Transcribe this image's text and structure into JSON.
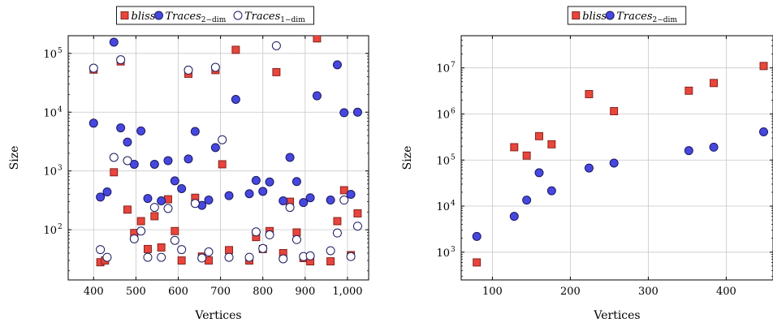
{
  "chart_data": [
    {
      "type": "scatter",
      "xlabel": "Vertices",
      "ylabel": "Size",
      "xlim": [
        340,
        1050
      ],
      "ylim": [
        14,
        200000
      ],
      "yscale": "log",
      "x_ticks": [
        400,
        500,
        600,
        700,
        800,
        900,
        1000
      ],
      "x_tick_labels": [
        "400",
        "500",
        "600",
        "700",
        "800",
        "900",
        "1,000"
      ],
      "y_ticks": [
        100,
        1000,
        10000,
        100000
      ],
      "y_tick_labels": [
        "10",
        "10",
        "10",
        "10"
      ],
      "y_tick_exponents": [
        "2",
        "3",
        "4",
        "5"
      ],
      "grid": true,
      "legend": {
        "placement": "top-center",
        "entries": [
          {
            "name": "bliss",
            "sub": "",
            "marker": "square"
          },
          {
            "name": "Traces",
            "sub": "2−dim",
            "marker": "filled-circle"
          },
          {
            "name": "Traces",
            "sub": "1−dim",
            "marker": "open-circle"
          }
        ]
      },
      "series": [
        {
          "name": "bliss",
          "marker": "square",
          "color": "#e8453c",
          "edge": "#7a1c16",
          "points": [
            [
              400,
              53000
            ],
            [
              416,
              28
            ],
            [
              427,
              30
            ],
            [
              448,
              950
            ],
            [
              464,
              73000
            ],
            [
              480,
              220
            ],
            [
              496,
              88
            ],
            [
              512,
              140
            ],
            [
              528,
              47
            ],
            [
              544,
              170
            ],
            [
              560,
              50
            ],
            [
              576,
              330
            ],
            [
              592,
              95
            ],
            [
              608,
              30
            ],
            [
              624,
              45000
            ],
            [
              640,
              350
            ],
            [
              656,
              35
            ],
            [
              672,
              30
            ],
            [
              688,
              52000
            ],
            [
              704,
              1300
            ],
            [
              720,
              45
            ],
            [
              736,
              115000
            ],
            [
              768,
              30
            ],
            [
              784,
              75
            ],
            [
              800,
              47
            ],
            [
              816,
              95
            ],
            [
              832,
              48000
            ],
            [
              848,
              40
            ],
            [
              864,
              300
            ],
            [
              880,
              90
            ],
            [
              896,
              33
            ],
            [
              912,
              29
            ],
            [
              928,
              180000
            ],
            [
              960,
              29
            ],
            [
              976,
              140
            ],
            [
              992,
              470
            ],
            [
              1008,
              37
            ],
            [
              1024,
              190
            ]
          ]
        },
        {
          "name": "Traces 2−dim",
          "marker": "filled-circle",
          "color": "#4747e0",
          "edge": "#1a1a60",
          "points": [
            [
              400,
              6500
            ],
            [
              416,
              360
            ],
            [
              432,
              440
            ],
            [
              448,
              155000
            ],
            [
              464,
              5400
            ],
            [
              480,
              3100
            ],
            [
              496,
              1300
            ],
            [
              512,
              4800
            ],
            [
              528,
              340
            ],
            [
              544,
              1300
            ],
            [
              560,
              310
            ],
            [
              576,
              1500
            ],
            [
              592,
              680
            ],
            [
              608,
              500
            ],
            [
              624,
              1600
            ],
            [
              640,
              4700
            ],
            [
              656,
              260
            ],
            [
              672,
              320
            ],
            [
              688,
              2500
            ],
            [
              720,
              380
            ],
            [
              736,
              16500
            ],
            [
              768,
              410
            ],
            [
              784,
              690
            ],
            [
              800,
              450
            ],
            [
              816,
              650
            ],
            [
              848,
              310
            ],
            [
              864,
              1700
            ],
            [
              880,
              660
            ],
            [
              896,
              290
            ],
            [
              912,
              350
            ],
            [
              928,
              19000
            ],
            [
              960,
              320
            ],
            [
              976,
              64000
            ],
            [
              992,
              9800
            ],
            [
              1008,
              400
            ],
            [
              1024,
              10000
            ]
          ]
        },
        {
          "name": "Traces 1−dim",
          "marker": "open-circle",
          "color": "#ffffff",
          "edge": "#1a1a60",
          "points": [
            [
              400,
              56000
            ],
            [
              416,
              46
            ],
            [
              432,
              34
            ],
            [
              448,
              1700
            ],
            [
              464,
              78000
            ],
            [
              480,
              1500
            ],
            [
              496,
              70
            ],
            [
              512,
              95
            ],
            [
              528,
              34
            ],
            [
              544,
              240
            ],
            [
              560,
              34
            ],
            [
              576,
              230
            ],
            [
              592,
              66
            ],
            [
              608,
              46
            ],
            [
              624,
              52000
            ],
            [
              640,
              280
            ],
            [
              656,
              33
            ],
            [
              672,
              42
            ],
            [
              688,
              58000
            ],
            [
              704,
              3400
            ],
            [
              720,
              34
            ],
            [
              768,
              34
            ],
            [
              784,
              92
            ],
            [
              800,
              48
            ],
            [
              816,
              82
            ],
            [
              832,
              135000
            ],
            [
              848,
              32
            ],
            [
              864,
              240
            ],
            [
              880,
              68
            ],
            [
              896,
              35
            ],
            [
              912,
              36
            ],
            [
              960,
              44
            ],
            [
              976,
              88
            ],
            [
              992,
              320
            ],
            [
              1008,
              35
            ],
            [
              1024,
              115
            ]
          ]
        }
      ]
    },
    {
      "type": "scatter",
      "xlabel": "Vertices",
      "ylabel": "Size",
      "xlim": [
        60,
        460
      ],
      "ylim": [
        250,
        50000000
      ],
      "yscale": "log",
      "x_ticks": [
        100,
        200,
        300,
        400
      ],
      "x_tick_labels": [
        "100",
        "200",
        "300",
        "400"
      ],
      "y_ticks": [
        1000,
        10000,
        100000,
        1000000,
        10000000
      ],
      "y_tick_labels": [
        "10",
        "10",
        "10",
        "10",
        "10"
      ],
      "y_tick_exponents": [
        "3",
        "4",
        "5",
        "6",
        "7"
      ],
      "grid": true,
      "legend": {
        "placement": "top-center",
        "entries": [
          {
            "name": "bliss",
            "sub": "",
            "marker": "square"
          },
          {
            "name": "Traces",
            "sub": "2−dim",
            "marker": "filled-circle"
          }
        ]
      },
      "series": [
        {
          "name": "bliss",
          "marker": "square",
          "color": "#e8453c",
          "edge": "#7a1c16",
          "points": [
            [
              80,
              600
            ],
            [
              128,
              190000
            ],
            [
              144,
              125000
            ],
            [
              160,
              330000
            ],
            [
              176,
              220000
            ],
            [
              224,
              2700000
            ],
            [
              256,
              1150000
            ],
            [
              352,
              3200000
            ],
            [
              384,
              4700000
            ],
            [
              448,
              11000000
            ]
          ]
        },
        {
          "name": "Traces 2−dim",
          "marker": "filled-circle",
          "color": "#4747e0",
          "edge": "#1a1a60",
          "points": [
            [
              80,
              2200
            ],
            [
              128,
              6000
            ],
            [
              144,
              13500
            ],
            [
              160,
              53000
            ],
            [
              176,
              21500
            ],
            [
              224,
              67000
            ],
            [
              256,
              86000
            ],
            [
              352,
              160000
            ],
            [
              384,
              190000
            ],
            [
              448,
              410000
            ]
          ]
        }
      ]
    }
  ]
}
